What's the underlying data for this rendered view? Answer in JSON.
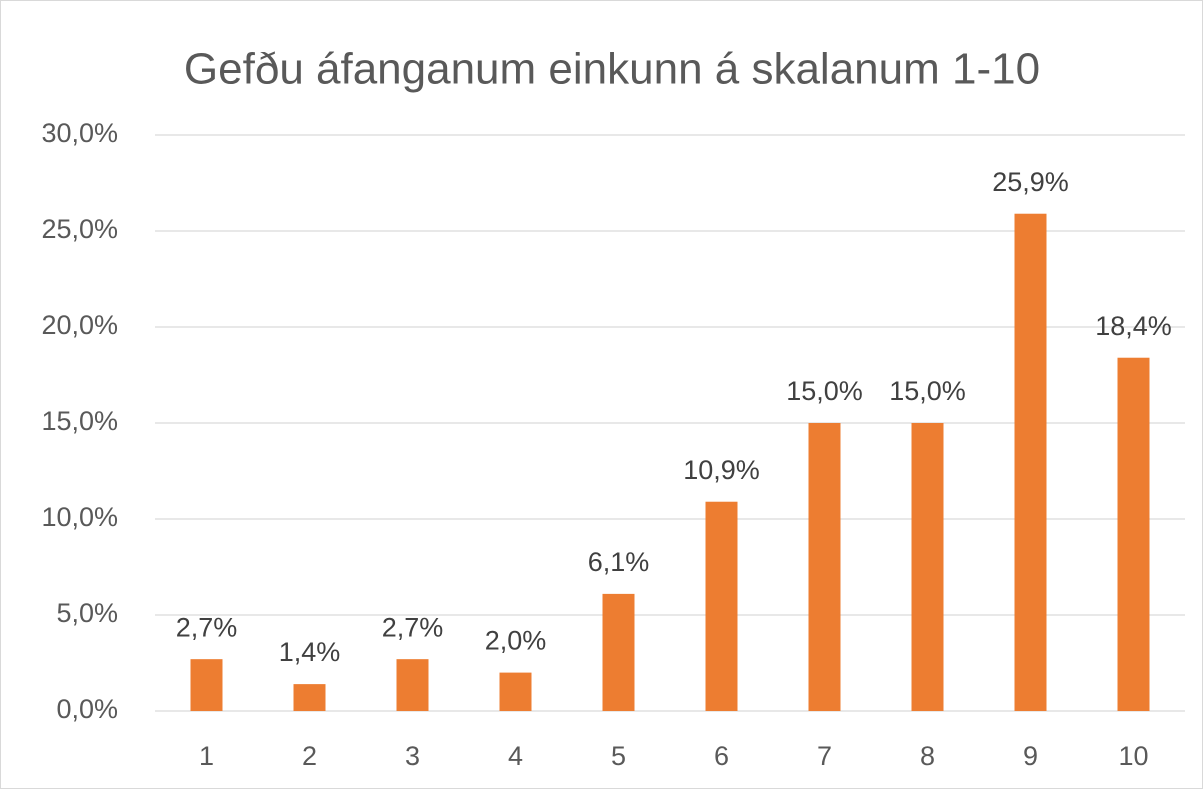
{
  "chart_data": {
    "type": "bar",
    "title": "Gefðu áfanganum einkunn á skalanum 1-10",
    "categories": [
      "1",
      "2",
      "3",
      "4",
      "5",
      "6",
      "7",
      "8",
      "9",
      "10"
    ],
    "values": [
      2.7,
      1.4,
      2.7,
      2.0,
      6.1,
      10.9,
      15.0,
      15.0,
      25.9,
      18.4
    ],
    "value_labels": [
      "2,7%",
      "1,4%",
      "2,7%",
      "2,0%",
      "6,1%",
      "10,9%",
      "15,0%",
      "15,0%",
      "25,9%",
      "18,4%"
    ],
    "color": "#ed7d31",
    "ylim": [
      0,
      30
    ],
    "yticks": [
      {
        "value": 0,
        "label": "0,0%"
      },
      {
        "value": 5,
        "label": "5,0%"
      },
      {
        "value": 10,
        "label": "10,0%"
      },
      {
        "value": 15,
        "label": "15,0%"
      },
      {
        "value": 20,
        "label": "20,0%"
      },
      {
        "value": 25,
        "label": "25,0%"
      },
      {
        "value": 30,
        "label": "30,0%"
      }
    ],
    "grid": true
  }
}
